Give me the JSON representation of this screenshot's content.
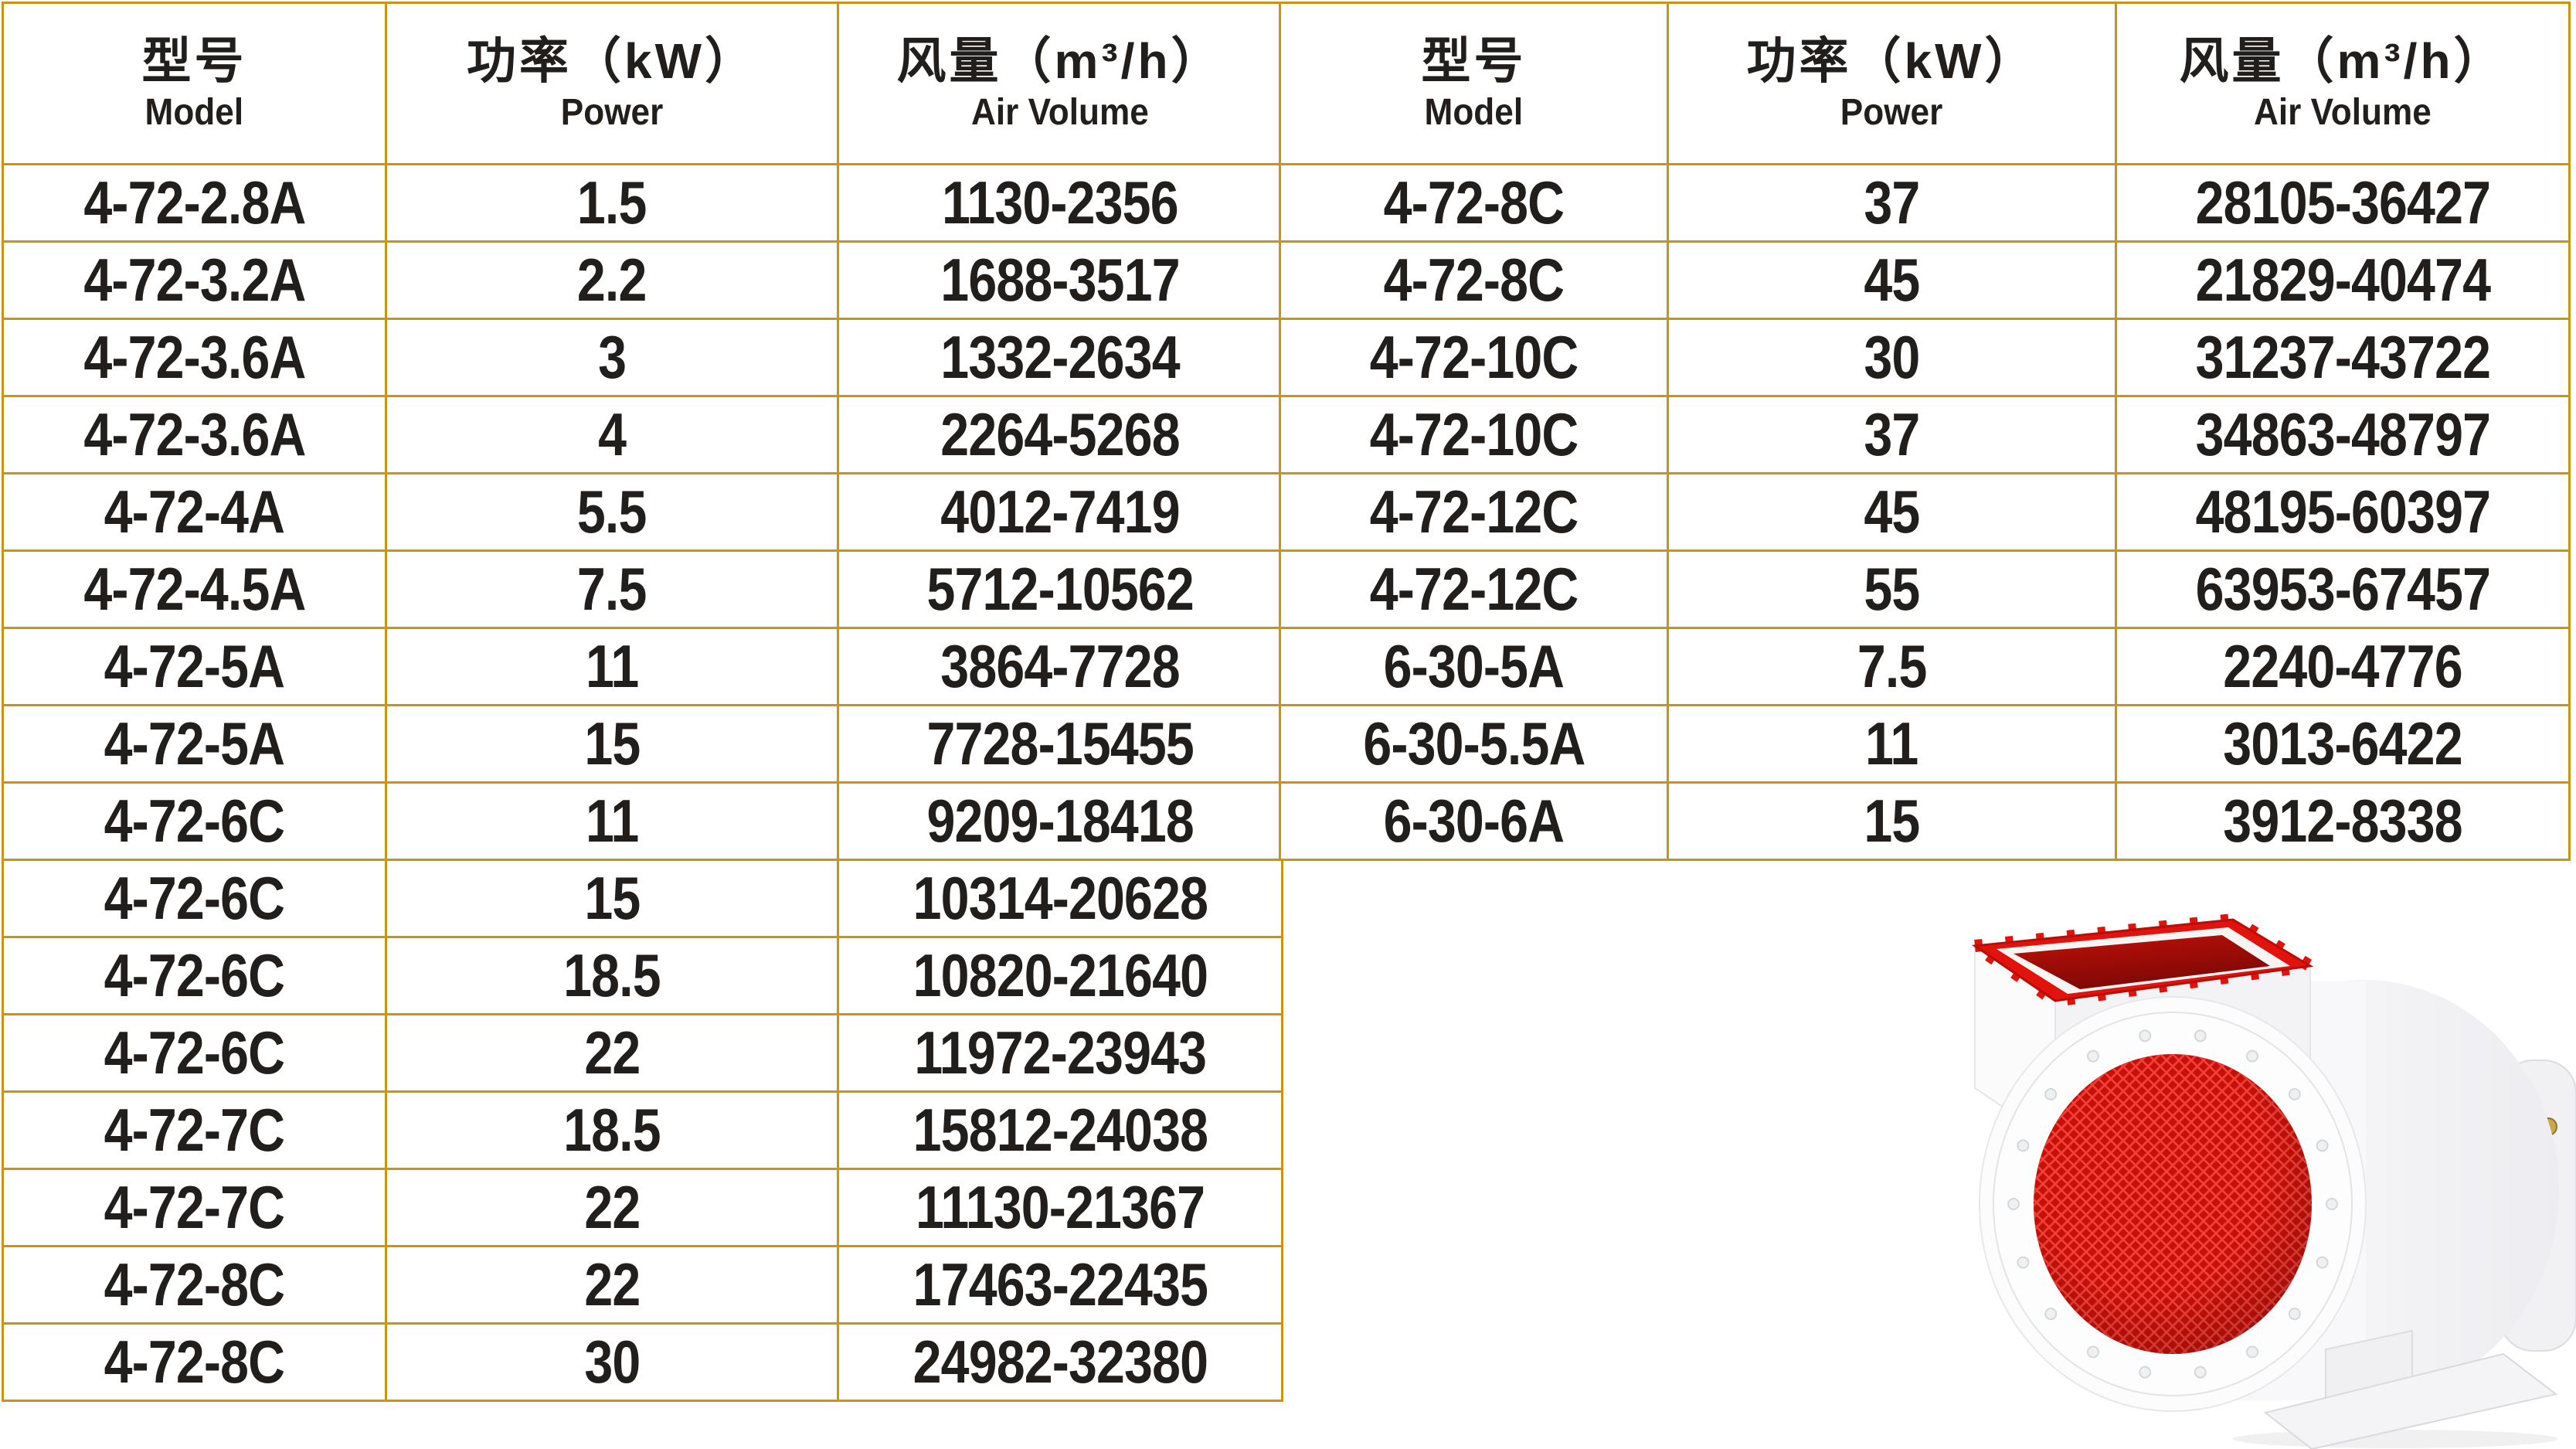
{
  "headers": {
    "model_cn": "型号",
    "model_en": "Model",
    "power_cn": "功率（kW）",
    "power_en": "Power",
    "air_cn": "风量（m³/h）",
    "air_en": "Air Volume"
  },
  "left_table": {
    "rows": [
      {
        "model": "4-72-2.8A",
        "power": "1.5",
        "air": "1130-2356"
      },
      {
        "model": "4-72-3.2A",
        "power": "2.2",
        "air": "1688-3517"
      },
      {
        "model": "4-72-3.6A",
        "power": "3",
        "air": "1332-2634"
      },
      {
        "model": "4-72-3.6A",
        "power": "4",
        "air": "2264-5268"
      },
      {
        "model": "4-72-4A",
        "power": "5.5",
        "air": "4012-7419"
      },
      {
        "model": "4-72-4.5A",
        "power": "7.5",
        "air": "5712-10562"
      },
      {
        "model": "4-72-5A",
        "power": "11",
        "air": "3864-7728"
      },
      {
        "model": "4-72-5A",
        "power": "15",
        "air": "7728-15455"
      },
      {
        "model": "4-72-6C",
        "power": "11",
        "air": "9209-18418"
      },
      {
        "model": "4-72-6C",
        "power": "15",
        "air": "10314-20628"
      },
      {
        "model": "4-72-6C",
        "power": "18.5",
        "air": "10820-21640"
      },
      {
        "model": "4-72-6C",
        "power": "22",
        "air": "11972-23943"
      },
      {
        "model": "4-72-7C",
        "power": "18.5",
        "air": "15812-24038"
      },
      {
        "model": "4-72-7C",
        "power": "22",
        "air": "11130-21367"
      },
      {
        "model": "4-72-8C",
        "power": "22",
        "air": "17463-22435"
      },
      {
        "model": "4-72-8C",
        "power": "30",
        "air": "24982-32380"
      }
    ]
  },
  "right_table": {
    "rows": [
      {
        "model": "4-72-8C",
        "power": "37",
        "air": "28105-36427"
      },
      {
        "model": "4-72-8C",
        "power": "45",
        "air": "21829-40474"
      },
      {
        "model": "4-72-10C",
        "power": "30",
        "air": "31237-43722"
      },
      {
        "model": "4-72-10C",
        "power": "37",
        "air": "34863-48797"
      },
      {
        "model": "4-72-12C",
        "power": "45",
        "air": "48195-60397"
      },
      {
        "model": "4-72-12C",
        "power": "55",
        "air": "63953-67457"
      },
      {
        "model": "6-30-5A",
        "power": "7.5",
        "air": "2240-4776"
      },
      {
        "model": "6-30-5.5A",
        "power": "11",
        "air": "3013-6422"
      },
      {
        "model": "6-30-6A",
        "power": "15",
        "air": "3912-8338"
      }
    ]
  },
  "fan_image": {
    "description": "centrifugal-blower-product-photo",
    "parts": [
      "red-outlet-flange",
      "white-scroll-housing",
      "red-mesh-inlet",
      "motor",
      "base-pedestal"
    ]
  },
  "colors": {
    "table_border_gold": "#c9940f",
    "text_ink": "#221e1b",
    "fan_red": "#e2130c",
    "fan_red_dark": "#a50b07",
    "bolt_gold": "#c9a84c"
  }
}
